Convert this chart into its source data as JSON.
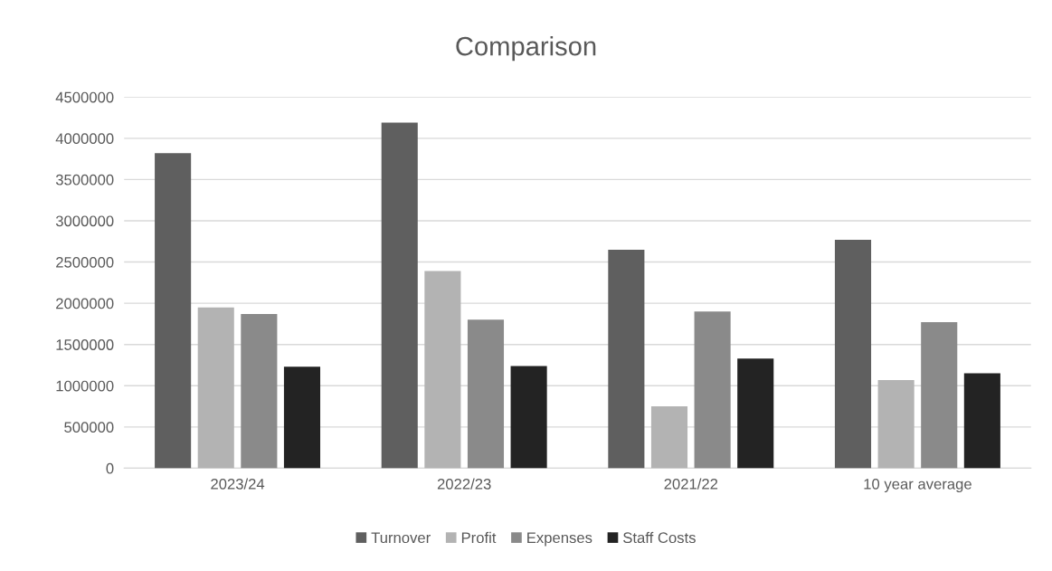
{
  "chart_data": {
    "type": "bar",
    "title": "Comparison",
    "categories": [
      "2023/24",
      "2022/23",
      "2021/22",
      "10 year average"
    ],
    "series": [
      {
        "name": "Turnover",
        "color": "#5f5f5f",
        "values": [
          3820000,
          4190000,
          2650000,
          2770000
        ]
      },
      {
        "name": "Profit",
        "color": "#b3b3b3",
        "values": [
          1950000,
          2390000,
          750000,
          1070000
        ]
      },
      {
        "name": "Expenses",
        "color": "#8a8a8a",
        "values": [
          1870000,
          1800000,
          1900000,
          1770000
        ]
      },
      {
        "name": "Staff Costs",
        "color": "#232323",
        "values": [
          1230000,
          1240000,
          1330000,
          1150000
        ]
      }
    ],
    "ylim": [
      0,
      4500000
    ],
    "yticks": [
      0,
      500000,
      1000000,
      1500000,
      2000000,
      2500000,
      3000000,
      3500000,
      4000000,
      4500000
    ],
    "grid": "y",
    "legend": "bottom"
  }
}
